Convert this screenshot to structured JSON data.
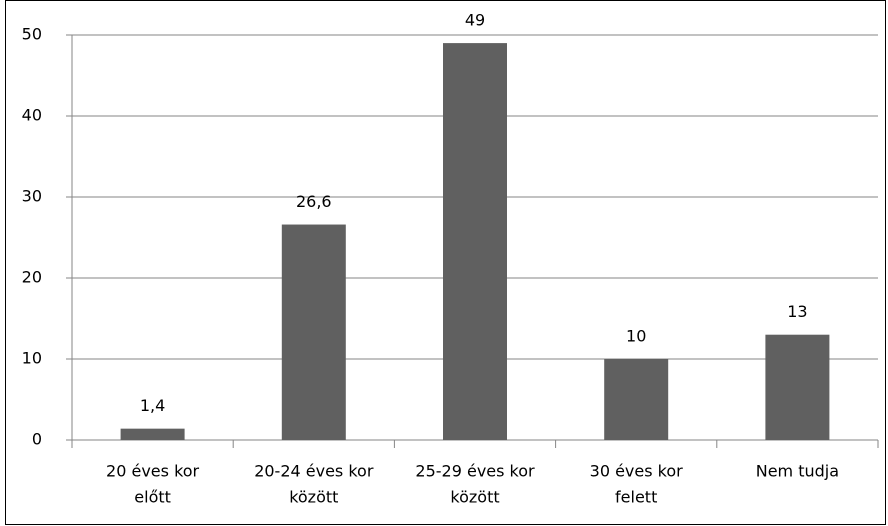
{
  "chart_data": {
    "type": "bar",
    "categories": [
      [
        "20 éves kor",
        "előtt"
      ],
      [
        "20-24 éves kor",
        "között"
      ],
      [
        "25-29 éves kor",
        "között"
      ],
      [
        "30 éves kor",
        "felett"
      ],
      [
        "Nem tudja"
      ]
    ],
    "values": [
      1.4,
      26.6,
      49,
      10,
      13
    ],
    "value_labels": [
      "1,4",
      "26,6",
      "49",
      "10",
      "13"
    ],
    "color": "#606060",
    "ylim": [
      0,
      50
    ],
    "yticks": [
      0,
      10,
      20,
      30,
      40,
      50
    ],
    "grid": true
  }
}
